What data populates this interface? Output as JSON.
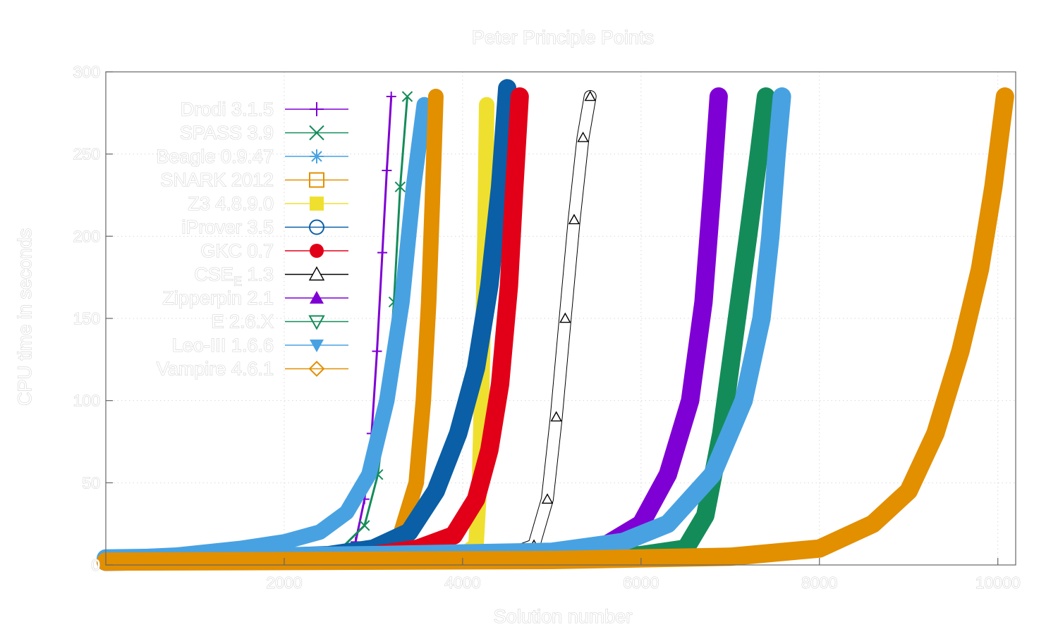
{
  "chart_data": {
    "type": "line",
    "title": "Peter Principle Points",
    "xlabel": "Solution number",
    "ylabel": "CPU time in seconds",
    "xlim": [
      0,
      10200
    ],
    "ylim": [
      0,
      300
    ],
    "xticks": [
      2000,
      4000,
      6000,
      8000,
      10000
    ],
    "yticks": [
      0,
      50,
      100,
      150,
      200,
      250,
      300
    ],
    "grid": true,
    "legend_position": "top-left",
    "series": [
      {
        "name": "Drodi 3.1.5",
        "name_sub": "",
        "color": "#7f00d4",
        "marker": "plus",
        "width": 3,
        "points": [
          [
            0,
            2
          ],
          [
            1000,
            3
          ],
          [
            2000,
            4
          ],
          [
            2600,
            6
          ],
          [
            2800,
            14
          ],
          [
            2900,
            40
          ],
          [
            2980,
            80
          ],
          [
            3040,
            130
          ],
          [
            3100,
            190
          ],
          [
            3150,
            240
          ],
          [
            3200,
            285
          ]
        ]
      },
      {
        "name": "SPASS 3.9",
        "name_sub": "",
        "color": "#148c5a",
        "marker": "x",
        "width": 3,
        "points": [
          [
            0,
            2
          ],
          [
            1000,
            3
          ],
          [
            2000,
            4
          ],
          [
            2600,
            8
          ],
          [
            2900,
            24
          ],
          [
            3050,
            55
          ],
          [
            3150,
            100
          ],
          [
            3230,
            160
          ],
          [
            3300,
            230
          ],
          [
            3380,
            285
          ]
        ]
      },
      {
        "name": "Beagle 0.9.47",
        "name_sub": "",
        "color": "#48a2e2",
        "marker": "asterisk",
        "width": 22,
        "points": [
          [
            0,
            4
          ],
          [
            800,
            6
          ],
          [
            1500,
            10
          ],
          [
            2000,
            14
          ],
          [
            2400,
            20
          ],
          [
            2700,
            32
          ],
          [
            2950,
            55
          ],
          [
            3150,
            100
          ],
          [
            3320,
            160
          ],
          [
            3450,
            230
          ],
          [
            3570,
            280
          ]
        ]
      },
      {
        "name": "SNARK 2012",
        "name_sub": "",
        "color": "#e28f00",
        "marker": "square-open",
        "width": 22,
        "points": [
          [
            0,
            2
          ],
          [
            2000,
            4
          ],
          [
            3000,
            8
          ],
          [
            3300,
            18
          ],
          [
            3480,
            50
          ],
          [
            3560,
            100
          ],
          [
            3620,
            160
          ],
          [
            3660,
            220
          ],
          [
            3700,
            285
          ]
        ]
      },
      {
        "name": "Z3 4.8.9.0",
        "name_sub": "",
        "color": "#efe030",
        "marker": "square-filled",
        "width": 22,
        "points": [
          [
            0,
            2
          ],
          [
            3000,
            4
          ],
          [
            4000,
            6
          ],
          [
            4150,
            12
          ],
          [
            4190,
            50
          ],
          [
            4220,
            120
          ],
          [
            4250,
            200
          ],
          [
            4270,
            280
          ]
        ]
      },
      {
        "name": "iProver 3.5",
        "name_sub": "",
        "color": "#0a5fa6",
        "marker": "circle-open",
        "width": 26,
        "points": [
          [
            0,
            2
          ],
          [
            1500,
            4
          ],
          [
            2500,
            6
          ],
          [
            3000,
            10
          ],
          [
            3400,
            20
          ],
          [
            3700,
            45
          ],
          [
            3950,
            80
          ],
          [
            4150,
            120
          ],
          [
            4300,
            170
          ],
          [
            4420,
            230
          ],
          [
            4500,
            290
          ]
        ]
      },
      {
        "name": "GKC 0.7",
        "name_sub": "",
        "color": "#e20018",
        "marker": "circle-filled",
        "width": 26,
        "points": [
          [
            0,
            2
          ],
          [
            2000,
            4
          ],
          [
            3000,
            6
          ],
          [
            3500,
            10
          ],
          [
            3900,
            18
          ],
          [
            4150,
            40
          ],
          [
            4300,
            70
          ],
          [
            4420,
            110
          ],
          [
            4520,
            170
          ],
          [
            4580,
            230
          ],
          [
            4640,
            285
          ]
        ]
      },
      {
        "name": "CSE",
        "name_sub": "E",
        "name_suffix": " 1.3",
        "color": "#000000",
        "marker": "triangle-open",
        "width": 1.2,
        "outline": true,
        "points": [
          [
            0,
            2
          ],
          [
            3000,
            4
          ],
          [
            4500,
            6
          ],
          [
            4800,
            12
          ],
          [
            4950,
            40
          ],
          [
            5050,
            90
          ],
          [
            5150,
            150
          ],
          [
            5250,
            210
          ],
          [
            5350,
            260
          ],
          [
            5430,
            285
          ]
        ]
      },
      {
        "name": "Zipperpin 2.1",
        "name_sub": "",
        "color": "#7f00d4",
        "marker": "triangle-filled",
        "width": 26,
        "points": [
          [
            0,
            2
          ],
          [
            4000,
            4
          ],
          [
            5000,
            6
          ],
          [
            5600,
            12
          ],
          [
            6000,
            25
          ],
          [
            6300,
            55
          ],
          [
            6550,
            100
          ],
          [
            6700,
            160
          ],
          [
            6800,
            230
          ],
          [
            6870,
            285
          ]
        ]
      },
      {
        "name": "E 2.6.X",
        "name_sub": "",
        "color": "#148c5a",
        "marker": "triangle-down-open",
        "width": 26,
        "points": [
          [
            0,
            2
          ],
          [
            4000,
            4
          ],
          [
            6000,
            6
          ],
          [
            6500,
            10
          ],
          [
            6720,
            30
          ],
          [
            6900,
            80
          ],
          [
            7050,
            140
          ],
          [
            7200,
            200
          ],
          [
            7320,
            250
          ],
          [
            7400,
            285
          ]
        ]
      },
      {
        "name": "Leo-III 1.6.6",
        "name_sub": "",
        "color": "#48a2e2",
        "marker": "triangle-down-filled",
        "width": 26,
        "points": [
          [
            0,
            4
          ],
          [
            3000,
            6
          ],
          [
            5000,
            8
          ],
          [
            5800,
            14
          ],
          [
            6300,
            25
          ],
          [
            6800,
            55
          ],
          [
            7150,
            100
          ],
          [
            7350,
            150
          ],
          [
            7450,
            200
          ],
          [
            7520,
            250
          ],
          [
            7580,
            285
          ]
        ]
      },
      {
        "name": "Vampire 4.6.1",
        "name_sub": "",
        "color": "#e28f00",
        "marker": "diamond-open",
        "width": 26,
        "points": [
          [
            0,
            2
          ],
          [
            5000,
            3
          ],
          [
            7000,
            5
          ],
          [
            8000,
            10
          ],
          [
            8600,
            25
          ],
          [
            9000,
            45
          ],
          [
            9300,
            80
          ],
          [
            9580,
            130
          ],
          [
            9800,
            180
          ],
          [
            9950,
            230
          ],
          [
            10080,
            285
          ]
        ]
      }
    ]
  }
}
